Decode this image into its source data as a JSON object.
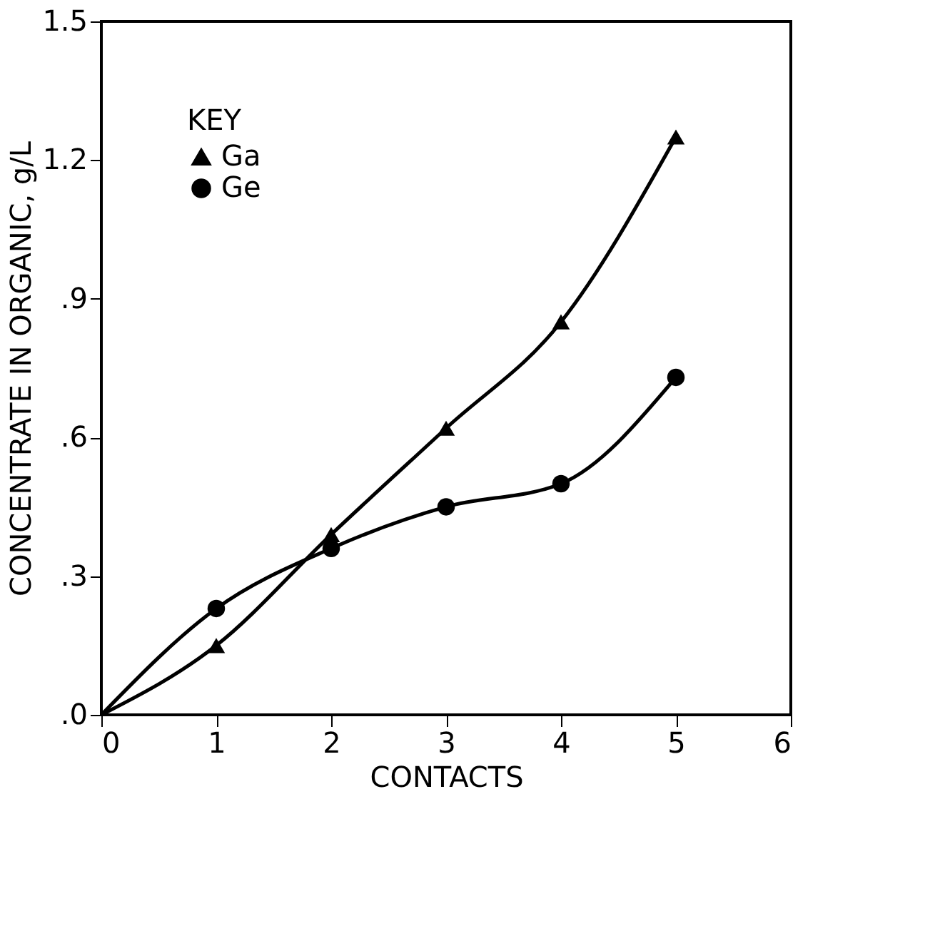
{
  "chart_data": {
    "type": "line",
    "xlabel": "CONTACTS",
    "ylabel": "CONCENTRATE IN ORGANIC, g/L",
    "legend_title": "KEY",
    "legend": "top left",
    "grid": false,
    "x": [
      0,
      1,
      2,
      3,
      4,
      5
    ],
    "series": [
      {
        "name": "Ga",
        "color": "#000000",
        "marker": "triangle",
        "values": [
          0,
          0.15,
          0.39,
          0.62,
          0.85,
          1.25
        ]
      },
      {
        "name": "Ge",
        "color": "#000000",
        "marker": "circle",
        "values": [
          0,
          0.23,
          0.36,
          0.45,
          0.5,
          0.73
        ]
      }
    ],
    "xlim": [
      0,
      6
    ],
    "xticks": [
      0,
      1,
      2,
      3,
      4,
      5,
      6
    ],
    "ylim": [
      0,
      1.5
    ],
    "yticks": [
      {
        "value": 0,
        "label": ".0"
      },
      {
        "value": 0.3,
        "label": ".3"
      },
      {
        "value": 0.6,
        "label": ".6"
      },
      {
        "value": 0.9,
        "label": ".9"
      },
      1.2,
      1.5
    ]
  }
}
